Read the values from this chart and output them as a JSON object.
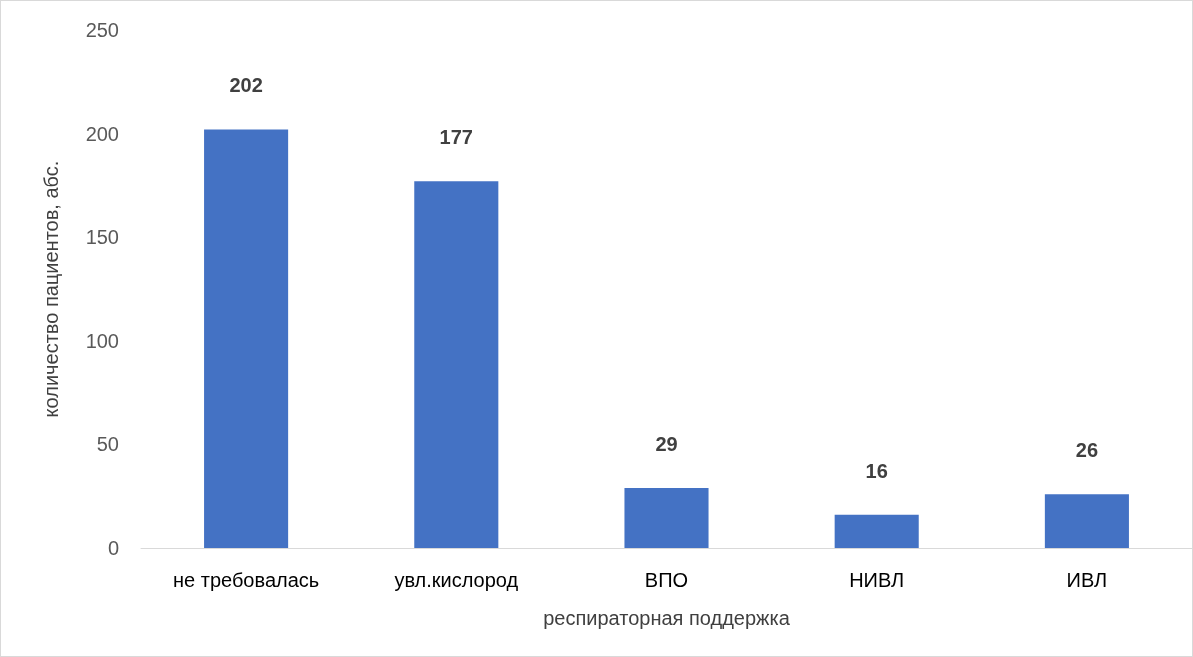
{
  "chart_data": {
    "type": "bar",
    "xlabel": "респираторная поддержка",
    "ylabel": "количество пациентов, абс.",
    "categories": [
      "не требовалась",
      "увл.кислород",
      "ВПО",
      "НИВЛ",
      "ИВЛ"
    ],
    "values": [
      202,
      177,
      29,
      16,
      26
    ],
    "color": "#4472c4",
    "ylim": [
      0,
      250
    ],
    "yticks": [
      0,
      50,
      100,
      150,
      200,
      250
    ],
    "grid": false,
    "data_labels": true
  }
}
